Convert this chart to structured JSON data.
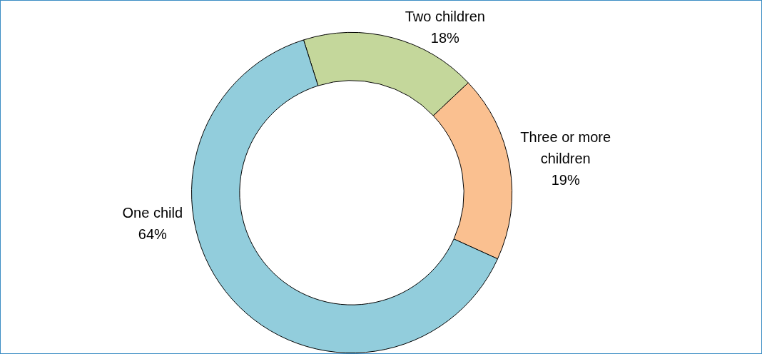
{
  "chart_data": {
    "type": "donut",
    "categories": [
      "Two children",
      "Three or more children",
      "One child"
    ],
    "values": [
      18,
      19,
      64
    ],
    "value_labels": [
      "18%",
      "19%",
      "64%"
    ],
    "colors": [
      "#c4d79b",
      "#fac090",
      "#92cddc"
    ]
  }
}
